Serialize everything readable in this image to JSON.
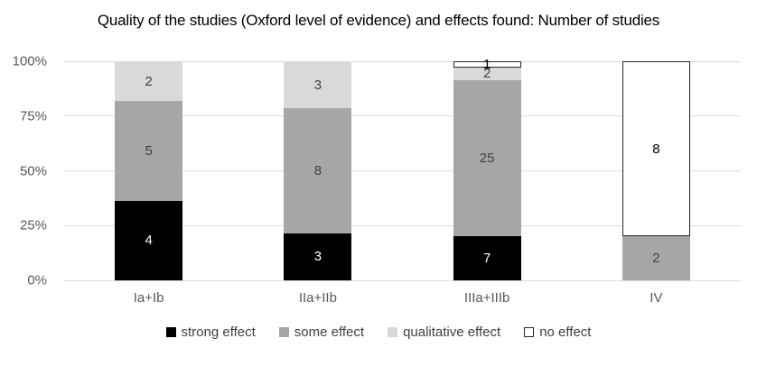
{
  "y_axis": {
    "ticks": [
      "100%",
      "75%",
      "50%",
      "25%",
      "0%"
    ]
  },
  "colors": {
    "gridline": "#dcdcdc",
    "axis_text": "#595959",
    "legend_text": "#404040",
    "title_text": "#000000",
    "background": "#ffffff"
  },
  "chart_data": {
    "type": "bar",
    "variant": "100-percent-stacked-column",
    "title": "Quality of the studies (Oxford level of evidence) and effects found: Number of studies",
    "categories": [
      "Ia+Ib",
      "IIa+IIb",
      "IIIa+IIIb",
      "IV"
    ],
    "series": [
      {
        "name": "strong effect",
        "color": "#000000",
        "label_color": "#ffffff",
        "values": [
          4,
          3,
          7,
          0
        ]
      },
      {
        "name": "some effect",
        "color": "#a6a6a6",
        "label_color": "#404040",
        "values": [
          5,
          8,
          25,
          2
        ]
      },
      {
        "name": "qualitative effect",
        "color": "#d9d9d9",
        "label_color": "#404040",
        "values": [
          2,
          3,
          2,
          0
        ]
      },
      {
        "name": "no effect",
        "color": "#ffffff",
        "border_color": "#262626",
        "label_color": "#000000",
        "values": [
          0,
          0,
          1,
          8
        ]
      }
    ],
    "ylim": [
      "0%",
      "100%"
    ],
    "gridlines": "horizontal every 25%",
    "legend_position": "bottom",
    "data_labels": "shown inside segments (counts)"
  }
}
